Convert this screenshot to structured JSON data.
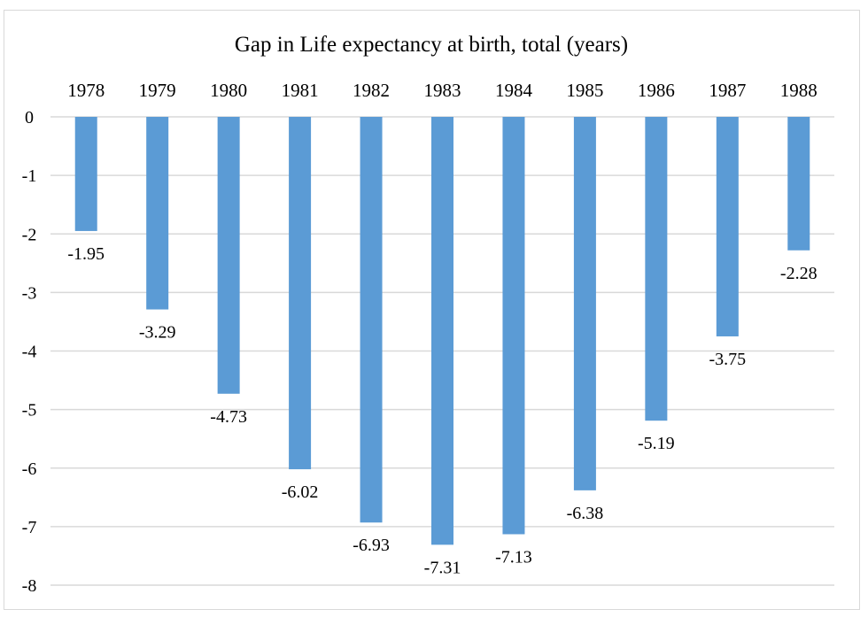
{
  "chart_data": {
    "type": "bar",
    "title": "Gap in Life expectancy at birth, total (years)",
    "categories": [
      "1978",
      "1979",
      "1980",
      "1981",
      "1982",
      "1983",
      "1984",
      "1985",
      "1986",
      "1987",
      "1988"
    ],
    "values": [
      -1.95,
      -3.29,
      -4.73,
      -6.02,
      -6.93,
      -7.31,
      -7.13,
      -6.38,
      -5.19,
      -3.75,
      -2.28
    ],
    "data_labels": [
      "-1.95",
      "-3.29",
      "-4.73",
      "-6.02",
      "-6.93",
      "-7.31",
      "-7.13",
      "-6.38",
      "-5.19",
      "-3.75",
      "-2.28"
    ],
    "y_ticks": [
      0,
      -1,
      -2,
      -3,
      -4,
      -5,
      -6,
      -7,
      -8
    ],
    "y_tick_labels": [
      "0",
      "-1",
      "-2",
      "-3",
      "-4",
      "-5",
      "-6",
      "-7",
      "-8"
    ],
    "ylim": [
      -8,
      0
    ],
    "xlabel": "",
    "ylabel": "",
    "x_axis_position": "top",
    "grid": true,
    "legend": "none",
    "bar_color": "#5b9bd5",
    "grid_color": "#d9d9d9"
  }
}
